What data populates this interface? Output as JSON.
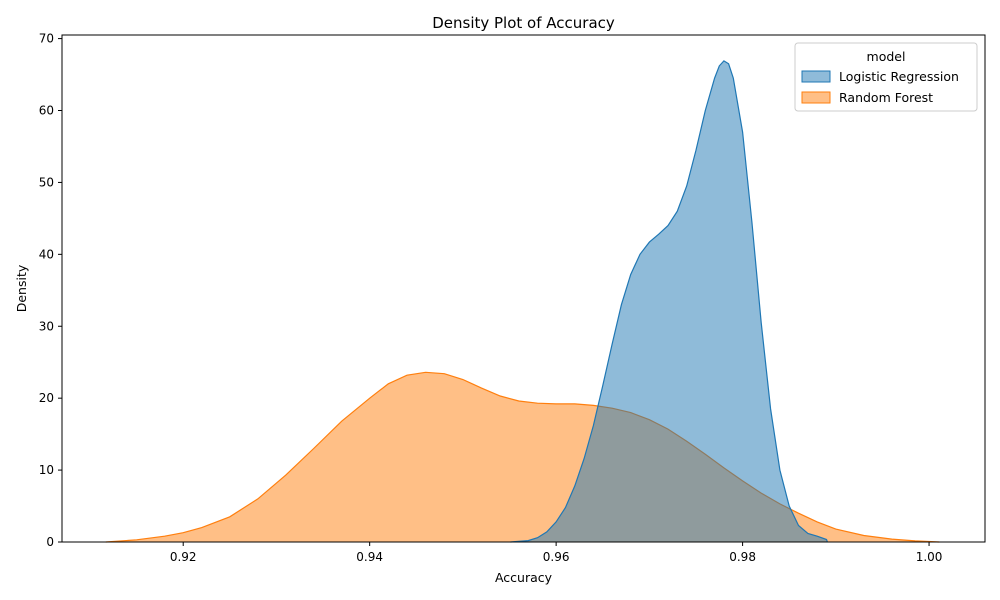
{
  "chart_data": {
    "type": "area",
    "title": "Density Plot of Accuracy",
    "xlabel": "Accuracy",
    "ylabel": "Density",
    "xlim": [
      0.907,
      1.006
    ],
    "ylim": [
      0,
      70.5
    ],
    "x_ticks": [
      0.92,
      0.94,
      0.96,
      0.98,
      1.0
    ],
    "x_tick_labels": [
      "0.92",
      "0.94",
      "0.96",
      "0.98",
      "1.00"
    ],
    "y_ticks": [
      0,
      10,
      20,
      30,
      40,
      50,
      60,
      70
    ],
    "y_tick_labels": [
      "0",
      "10",
      "20",
      "30",
      "40",
      "50",
      "60",
      "70"
    ],
    "grid": false,
    "legend": {
      "title": "model",
      "placement": "top-right",
      "entries": [
        "Logistic Regression",
        "Random Forest"
      ]
    },
    "series": [
      {
        "name": "Random Forest",
        "color": "#ff7f0e",
        "fill_opacity": 0.5,
        "points": [
          [
            0.9117,
            0.0
          ],
          [
            0.915,
            0.3
          ],
          [
            0.918,
            0.8
          ],
          [
            0.92,
            1.3
          ],
          [
            0.922,
            2.0
          ],
          [
            0.925,
            3.5
          ],
          [
            0.928,
            6.0
          ],
          [
            0.931,
            9.3
          ],
          [
            0.934,
            13.0
          ],
          [
            0.937,
            16.8
          ],
          [
            0.94,
            20.0
          ],
          [
            0.942,
            22.0
          ],
          [
            0.944,
            23.2
          ],
          [
            0.946,
            23.6
          ],
          [
            0.948,
            23.4
          ],
          [
            0.95,
            22.6
          ],
          [
            0.952,
            21.4
          ],
          [
            0.954,
            20.3
          ],
          [
            0.956,
            19.6
          ],
          [
            0.958,
            19.3
          ],
          [
            0.96,
            19.2
          ],
          [
            0.962,
            19.2
          ],
          [
            0.964,
            19.0
          ],
          [
            0.966,
            18.6
          ],
          [
            0.968,
            18.0
          ],
          [
            0.97,
            17.0
          ],
          [
            0.972,
            15.7
          ],
          [
            0.974,
            14.0
          ],
          [
            0.976,
            12.2
          ],
          [
            0.978,
            10.3
          ],
          [
            0.98,
            8.5
          ],
          [
            0.982,
            6.8
          ],
          [
            0.984,
            5.3
          ],
          [
            0.986,
            4.0
          ],
          [
            0.988,
            2.8
          ],
          [
            0.99,
            1.8
          ],
          [
            0.993,
            0.9
          ],
          [
            0.996,
            0.4
          ],
          [
            0.9985,
            0.15
          ],
          [
            1.0011,
            0.0
          ]
        ]
      },
      {
        "name": "Logistic Regression",
        "color": "#1f77b4",
        "fill_opacity": 0.5,
        "points": [
          [
            0.9551,
            0.0
          ],
          [
            0.957,
            0.2
          ],
          [
            0.958,
            0.6
          ],
          [
            0.959,
            1.4
          ],
          [
            0.96,
            2.8
          ],
          [
            0.961,
            4.8
          ],
          [
            0.962,
            7.8
          ],
          [
            0.963,
            11.6
          ],
          [
            0.964,
            16.2
          ],
          [
            0.965,
            21.7
          ],
          [
            0.966,
            27.5
          ],
          [
            0.967,
            33.0
          ],
          [
            0.968,
            37.2
          ],
          [
            0.969,
            40.0
          ],
          [
            0.97,
            41.7
          ],
          [
            0.971,
            42.8
          ],
          [
            0.972,
            44.0
          ],
          [
            0.973,
            46.0
          ],
          [
            0.974,
            49.5
          ],
          [
            0.975,
            54.5
          ],
          [
            0.976,
            60.0
          ],
          [
            0.977,
            64.5
          ],
          [
            0.9775,
            66.2
          ],
          [
            0.978,
            66.9
          ],
          [
            0.9785,
            66.5
          ],
          [
            0.979,
            64.5
          ],
          [
            0.98,
            57.0
          ],
          [
            0.981,
            44.5
          ],
          [
            0.982,
            30.5
          ],
          [
            0.983,
            18.5
          ],
          [
            0.984,
            10.0
          ],
          [
            0.985,
            5.0
          ],
          [
            0.986,
            2.3
          ],
          [
            0.987,
            1.2
          ],
          [
            0.988,
            0.8
          ],
          [
            0.989,
            0.35
          ],
          [
            0.9891,
            0.0
          ]
        ]
      }
    ]
  }
}
